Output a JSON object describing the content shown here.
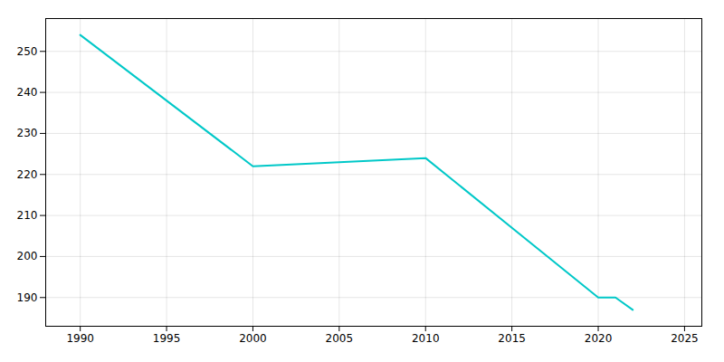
{
  "chart_data": {
    "type": "line",
    "x": [
      1990,
      2000,
      2005,
      2010,
      2020,
      2021,
      2022
    ],
    "values": [
      254,
      222,
      223,
      224,
      190,
      190,
      187
    ],
    "color": "#00C8C8",
    "xlim": [
      1988,
      2026
    ],
    "ylim": [
      183,
      258
    ],
    "xticks": [
      1990,
      1995,
      2000,
      2005,
      2010,
      2015,
      2020,
      2025
    ],
    "yticks": [
      190,
      200,
      210,
      220,
      230,
      240,
      250
    ],
    "grid": true
  }
}
